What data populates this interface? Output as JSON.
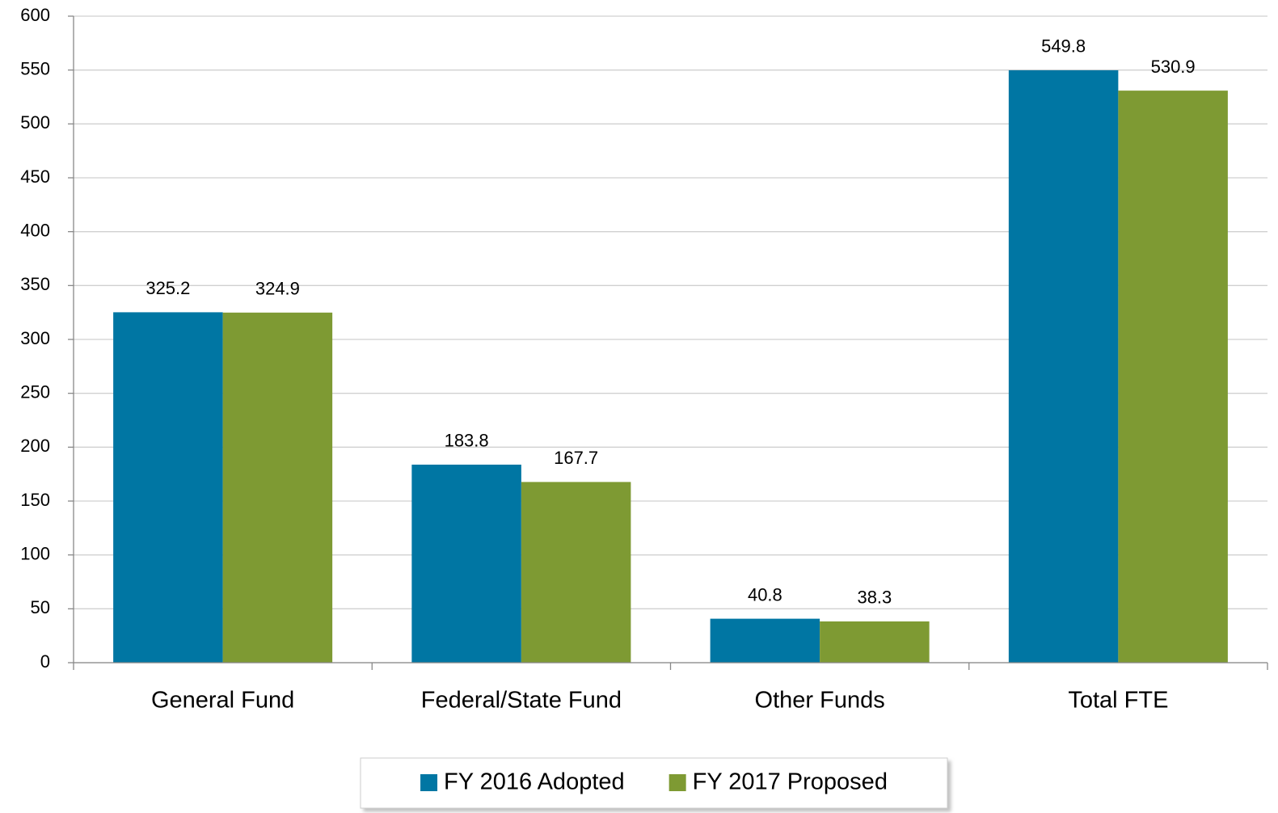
{
  "chart_data": {
    "type": "bar",
    "categories": [
      "General Fund",
      "Federal/State Fund",
      "Other Funds",
      "Total FTE"
    ],
    "series": [
      {
        "name": "FY 2016 Adopted",
        "color": "#0076a3",
        "values": [
          325.2,
          183.8,
          40.8,
          549.8
        ]
      },
      {
        "name": "FY 2017 Proposed",
        "color": "#7e9a33",
        "values": [
          324.9,
          167.7,
          38.3,
          530.9
        ]
      }
    ],
    "ylim": [
      0,
      600
    ],
    "yticks": [
      0,
      50,
      100,
      150,
      200,
      250,
      300,
      350,
      400,
      450,
      500,
      550,
      600
    ],
    "grid": true,
    "legend": "bottom"
  }
}
